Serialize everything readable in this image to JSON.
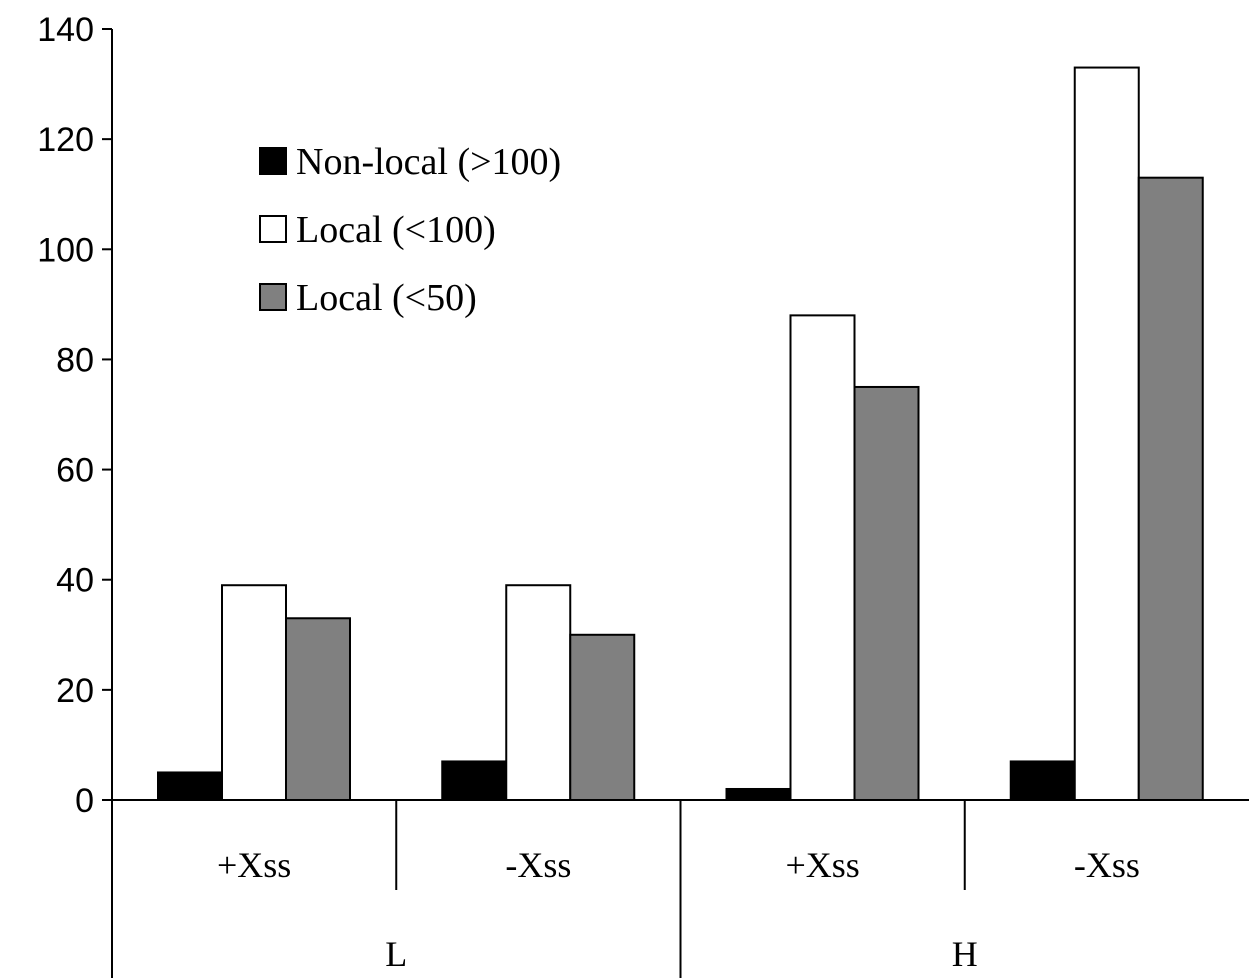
{
  "chart_data": {
    "type": "bar",
    "title": "",
    "xlabel": "",
    "ylabel": "",
    "ylim": [
      0,
      140
    ],
    "yticks": [
      "0",
      "20",
      "40",
      "60",
      "80",
      "100",
      "120",
      "140"
    ],
    "groups": [
      {
        "label": "L",
        "categories": [
          "+Xss",
          "-Xss"
        ]
      },
      {
        "label": "H",
        "categories": [
          "+Xss",
          "-Xss"
        ]
      }
    ],
    "categories": [
      "+Xss",
      "-Xss",
      "+Xss",
      "-Xss"
    ],
    "series": [
      {
        "name": "Non-local (>100)",
        "color": "#000000",
        "values": [
          5,
          7,
          2,
          7
        ]
      },
      {
        "name": "Local (<100)",
        "color": "#ffffff",
        "values": [
          39,
          39,
          88,
          133
        ]
      },
      {
        "name": "Local (<50)",
        "color": "#808080",
        "values": [
          33,
          30,
          75,
          113
        ]
      }
    ],
    "legend_position": "upper-left",
    "grid": false
  }
}
